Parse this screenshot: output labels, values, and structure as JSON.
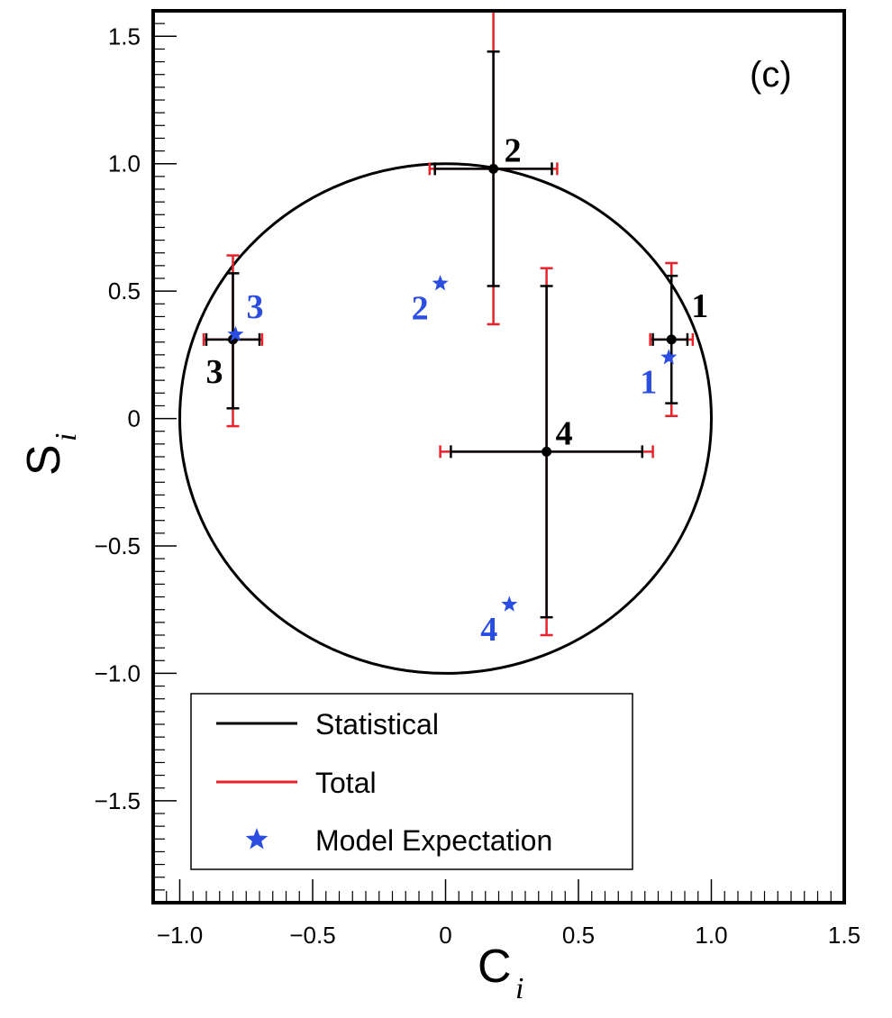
{
  "chart_data": {
    "type": "scatter",
    "panel_label": "(c)",
    "xlabel": "C",
    "xlabel_sub": "i",
    "ylabel": "S",
    "ylabel_sub": "i",
    "xlim": [
      -1.1,
      1.5
    ],
    "ylim": [
      -1.9,
      1.6
    ],
    "xticks": [
      -1.0,
      -0.5,
      0,
      0.5,
      1.0,
      1.5
    ],
    "xtick_labels": [
      "−1.0",
      "−0.5",
      "0",
      "0.5",
      "1.0",
      "1.5"
    ],
    "yticks": [
      -1.5,
      -1.0,
      -0.5,
      0,
      0.5,
      1.0,
      1.5
    ],
    "ytick_labels": [
      "−1.5",
      "−1.0",
      "−0.5",
      "0",
      "0.5",
      "1.0",
      "1.5"
    ],
    "unit_circle": true,
    "grid": false,
    "legend_position": "bottom-left",
    "legend": [
      {
        "label": "Statistical",
        "type": "line",
        "color": "#000000"
      },
      {
        "label": "Total",
        "type": "line",
        "color": "#e8222a"
      },
      {
        "label": "Model Expectation",
        "type": "star",
        "color": "#2b4de0"
      }
    ],
    "measurements": [
      {
        "label": "1",
        "c": 0.85,
        "s": 0.31,
        "c_stat": [
          0.78,
          0.91
        ],
        "c_tot": [
          0.77,
          0.93
        ],
        "s_stat": [
          0.06,
          0.56
        ],
        "s_tot": [
          0.01,
          0.61
        ]
      },
      {
        "label": "2",
        "c": 0.18,
        "s": 0.98,
        "c_stat": [
          -0.04,
          0.4
        ],
        "c_tot": [
          -0.06,
          0.42
        ],
        "s_stat": [
          0.52,
          1.44
        ],
        "s_tot": [
          0.37,
          1.6
        ]
      },
      {
        "label": "3",
        "c": -0.8,
        "s": 0.31,
        "c_stat": [
          -0.9,
          -0.7
        ],
        "c_tot": [
          -0.91,
          -0.69
        ],
        "s_stat": [
          0.04,
          0.57
        ],
        "s_tot": [
          -0.03,
          0.64
        ]
      },
      {
        "label": "4",
        "c": 0.38,
        "s": -0.13,
        "c_stat": [
          0.02,
          0.74
        ],
        "c_tot": [
          -0.02,
          0.78
        ],
        "s_stat": [
          -0.78,
          0.52
        ],
        "s_tot": [
          -0.85,
          0.59
        ]
      }
    ],
    "model_expectation": [
      {
        "label": "1",
        "c": 0.84,
        "s": 0.24
      },
      {
        "label": "2",
        "c": -0.02,
        "s": 0.53
      },
      {
        "label": "3",
        "c": -0.79,
        "s": 0.33
      },
      {
        "label": "4",
        "c": 0.24,
        "s": -0.73
      }
    ],
    "colors": {
      "stat": "#000000",
      "total": "#e8222a",
      "model": "#2b4de0"
    }
  }
}
